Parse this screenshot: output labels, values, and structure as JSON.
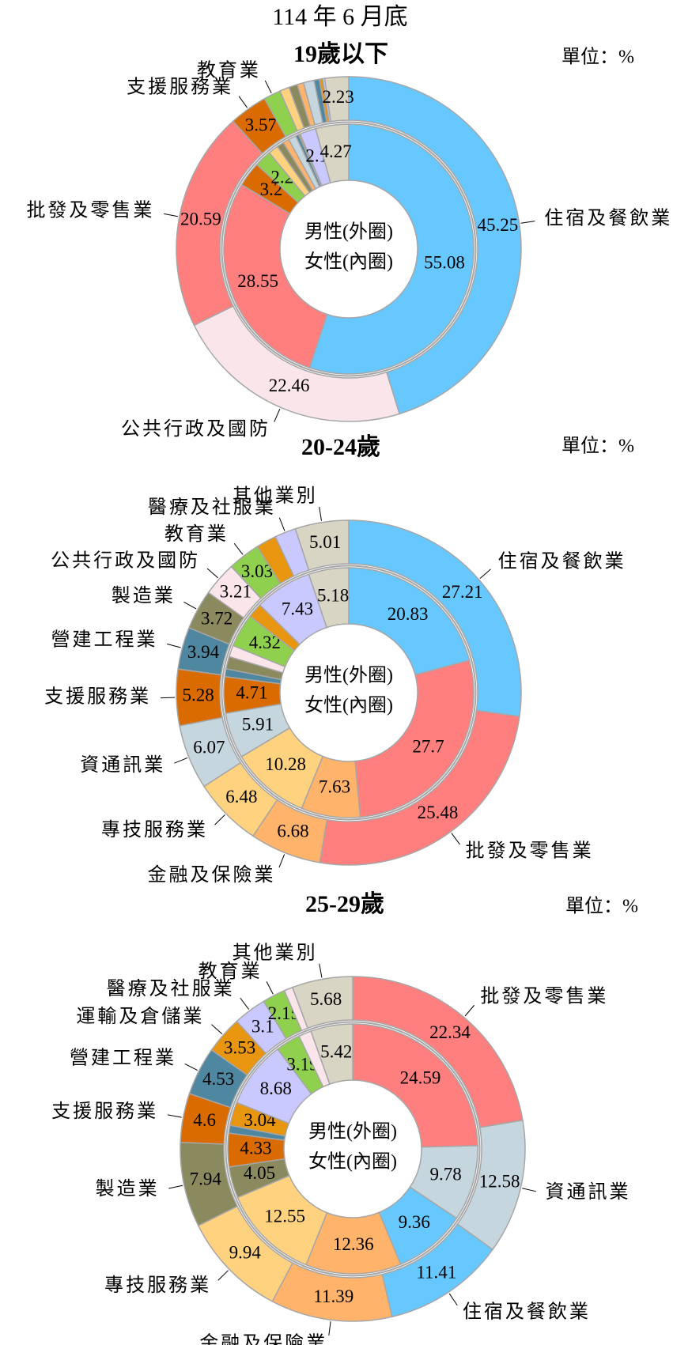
{
  "header": {
    "title": "114 年 6 月底"
  },
  "chart_data": [
    {
      "type": "donut",
      "title": "19歲以下",
      "unit_label": "單位：%",
      "categories": [
        "住宿及餐飲業",
        "公共行政及國防",
        "批發及零售業",
        "支援服務業",
        "教育業",
        null,
        null,
        null,
        null,
        null,
        null,
        null,
        null
      ],
      "colors": [
        "#66c8ff",
        "#fae6ea",
        "#ff7f7f",
        "#d96b00",
        "#8fd14f",
        "#ffd27f",
        "#8b8a5e",
        "#ffb36b",
        "#c5d6de",
        "#4f86a0",
        "#e8950f",
        "#c9c9ff",
        "#d9d5c5"
      ],
      "series": [
        {
          "name": "男性(外圈)",
          "values": [
            45.25,
            22.46,
            20.59,
            3.57,
            1.6,
            0.9,
            0.8,
            0.6,
            1.0,
            0.5,
            0.3,
            0.2,
            2.23
          ]
        },
        {
          "name": "女性(內圈)",
          "values": [
            55.08,
            0,
            28.55,
            3.2,
            2.2,
            1.3,
            0.9,
            0.8,
            1.0,
            0.4,
            0.2,
            2.1,
            4.27
          ]
        }
      ]
    },
    {
      "type": "donut",
      "title": "20-24歲",
      "unit_label": "單位：%",
      "categories": [
        "住宿及餐飲業",
        "批發及零售業",
        "金融及保險業",
        "專技服務業",
        "資通訊業",
        "支援服務業",
        "營建工程業",
        "製造業",
        "公共行政及國防",
        "教育業",
        null,
        "醫療及社服業",
        "其他業別"
      ],
      "colors": [
        "#66c8ff",
        "#ff7f7f",
        "#ffb36b",
        "#ffd27f",
        "#c5d6de",
        "#d96b00",
        "#4f86a0",
        "#8b8a5e",
        "#fae6ea",
        "#8fd14f",
        "#e8950f",
        "#c9c9ff",
        "#d9d5c5"
      ],
      "series": [
        {
          "name": "男性(外圈)",
          "values": [
            27.21,
            25.48,
            6.68,
            6.48,
            6.07,
            5.28,
            3.94,
            3.72,
            3.21,
            3.03,
            1.9,
            1.99,
            5.01
          ]
        },
        {
          "name": "女性(內圈)",
          "values": [
            20.83,
            27.7,
            7.63,
            10.28,
            5.91,
            4.71,
            1.0,
            1.6,
            1.5,
            4.32,
            1.91,
            7.43,
            5.18
          ]
        }
      ]
    },
    {
      "type": "donut",
      "title": "25-29歲",
      "unit_label": "單位：%",
      "categories": [
        "批發及零售業",
        "資通訊業",
        "住宿及餐飲業",
        "金融及保險業",
        "專技服務業",
        "製造業",
        "支援服務業",
        "營建工程業",
        "運輸及倉儲業",
        "醫療及社服業",
        "教育業",
        null,
        "其他業別"
      ],
      "colors": [
        "#ff7f7f",
        "#c5d6de",
        "#66c8ff",
        "#ffb36b",
        "#ffd27f",
        "#8b8a5e",
        "#d96b00",
        "#4f86a0",
        "#e8950f",
        "#c9c9ff",
        "#8fd14f",
        "#fae6ea",
        "#d9d5c5"
      ],
      "series": [
        {
          "name": "男性(外圈)",
          "values": [
            22.34,
            12.58,
            11.41,
            11.39,
            9.94,
            7.94,
            4.6,
            4.53,
            3.53,
            3.1,
            2.15,
            0.81,
            5.68
          ]
        },
        {
          "name": "女性(內圈)",
          "values": [
            24.59,
            9.78,
            9.36,
            12.36,
            12.55,
            4.05,
            4.33,
            1.0,
            3.04,
            8.68,
            3.19,
            1.65,
            5.42
          ]
        }
      ]
    }
  ]
}
